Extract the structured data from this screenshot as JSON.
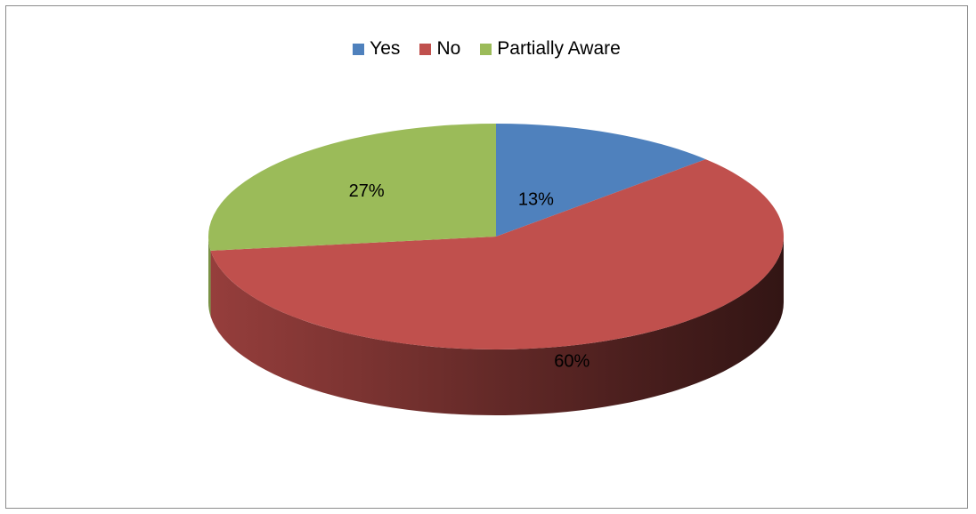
{
  "chart_data": {
    "type": "pie",
    "three_d": true,
    "legend_position": "top",
    "title": "",
    "slices": [
      {
        "name": "Yes",
        "value": 13,
        "label": "13%",
        "color": "#4F81BD"
      },
      {
        "name": "No",
        "value": 60,
        "label": "60%",
        "color": "#C0504D"
      },
      {
        "name": "Partially Aware",
        "value": 27,
        "label": "27%",
        "color": "#9BBB59"
      }
    ]
  }
}
